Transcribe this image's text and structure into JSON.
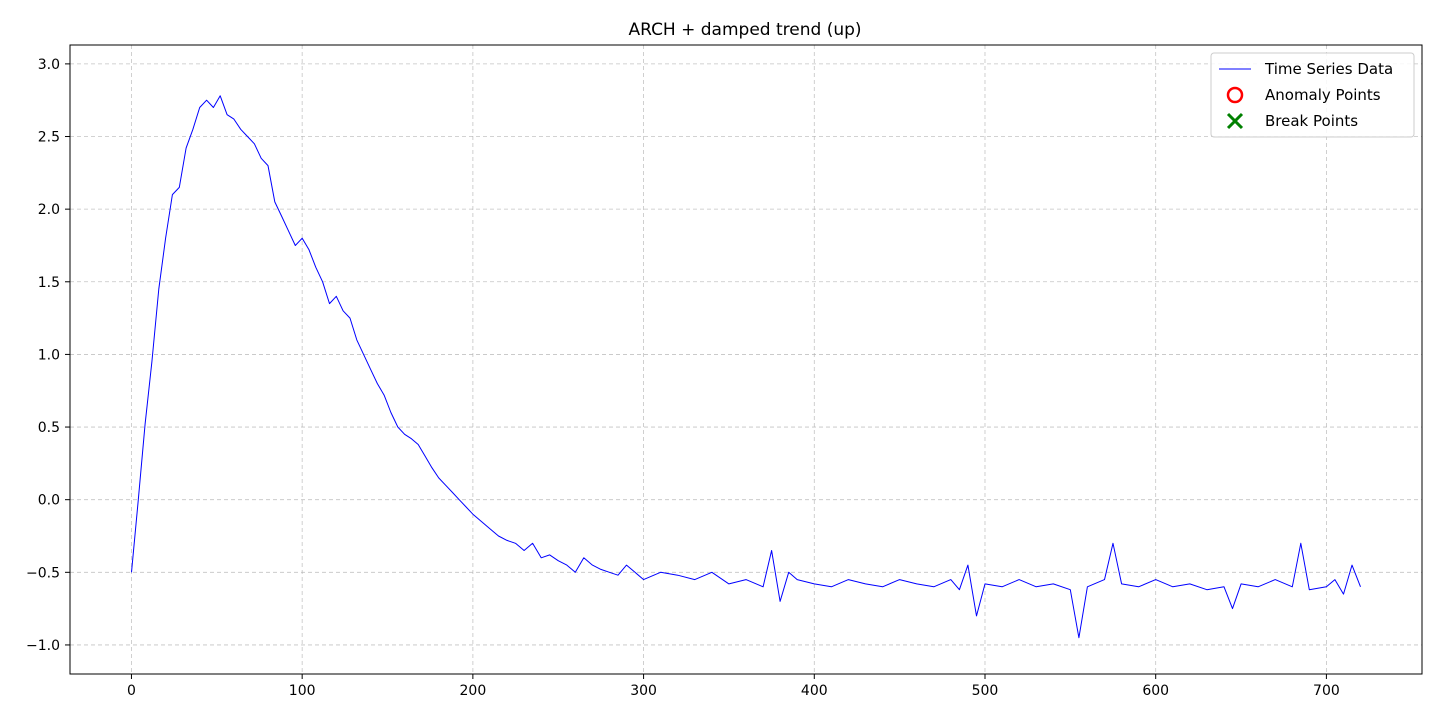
{
  "chart_data": {
    "type": "line",
    "title": "ARCH + damped trend (up)",
    "xlabel": "",
    "ylabel": "",
    "xlim": [
      -36,
      756
    ],
    "ylim": [
      -1.2,
      3.13
    ],
    "x_ticks": [
      0,
      100,
      200,
      300,
      400,
      500,
      600,
      700
    ],
    "y_ticks": [
      -1.0,
      -0.5,
      0.0,
      0.5,
      1.0,
      1.5,
      2.0,
      2.5,
      3.0
    ],
    "grid": true,
    "legend_position": "top-right",
    "colors": {
      "series": "#0000ff",
      "anomaly": "#ff0000",
      "break": "#008000"
    },
    "legend": [
      {
        "label": "Time Series Data",
        "marker": "line"
      },
      {
        "label": "Anomaly Points",
        "marker": "circle"
      },
      {
        "label": "Break Points",
        "marker": "x"
      }
    ],
    "series": [
      {
        "name": "Time Series Data",
        "x": [
          0,
          4,
          8,
          12,
          16,
          20,
          24,
          28,
          32,
          36,
          40,
          44,
          48,
          52,
          56,
          60,
          64,
          68,
          72,
          76,
          80,
          84,
          88,
          92,
          96,
          100,
          104,
          108,
          112,
          116,
          120,
          124,
          128,
          132,
          136,
          140,
          144,
          148,
          152,
          156,
          160,
          164,
          168,
          172,
          176,
          180,
          184,
          188,
          192,
          196,
          200,
          205,
          210,
          215,
          220,
          225,
          230,
          235,
          240,
          245,
          250,
          255,
          260,
          265,
          270,
          275,
          280,
          285,
          290,
          295,
          300,
          310,
          320,
          330,
          340,
          350,
          360,
          370,
          375,
          380,
          385,
          390,
          400,
          410,
          420,
          430,
          440,
          450,
          460,
          470,
          480,
          485,
          490,
          495,
          500,
          510,
          520,
          530,
          540,
          550,
          555,
          560,
          570,
          575,
          580,
          590,
          600,
          610,
          620,
          630,
          640,
          645,
          650,
          660,
          670,
          680,
          685,
          690,
          700,
          705,
          710,
          715,
          720
        ],
        "y": [
          -0.5,
          0.0,
          0.52,
          0.95,
          1.45,
          1.8,
          2.1,
          2.15,
          2.42,
          2.55,
          2.7,
          2.75,
          2.7,
          2.78,
          2.65,
          2.62,
          2.55,
          2.5,
          2.45,
          2.35,
          2.3,
          2.05,
          1.95,
          1.85,
          1.75,
          1.8,
          1.72,
          1.6,
          1.5,
          1.35,
          1.4,
          1.3,
          1.25,
          1.1,
          1.0,
          0.9,
          0.8,
          0.72,
          0.6,
          0.5,
          0.45,
          0.42,
          0.38,
          0.3,
          0.22,
          0.15,
          0.1,
          0.05,
          0.0,
          -0.05,
          -0.1,
          -0.15,
          -0.2,
          -0.25,
          -0.28,
          -0.3,
          -0.35,
          -0.3,
          -0.4,
          -0.38,
          -0.42,
          -0.45,
          -0.5,
          -0.4,
          -0.45,
          -0.48,
          -0.5,
          -0.52,
          -0.45,
          -0.5,
          -0.55,
          -0.5,
          -0.52,
          -0.55,
          -0.5,
          -0.58,
          -0.55,
          -0.6,
          -0.35,
          -0.7,
          -0.5,
          -0.55,
          -0.58,
          -0.6,
          -0.55,
          -0.58,
          -0.6,
          -0.55,
          -0.58,
          -0.6,
          -0.55,
          -0.62,
          -0.45,
          -0.8,
          -0.58,
          -0.6,
          -0.55,
          -0.6,
          -0.58,
          -0.62,
          -0.95,
          -0.6,
          -0.55,
          -0.3,
          -0.58,
          -0.6,
          -0.55,
          -0.6,
          -0.58,
          -0.62,
          -0.6,
          -0.75,
          -0.58,
          -0.6,
          -0.55,
          -0.6,
          -0.3,
          -0.62,
          -0.6,
          -0.55,
          -0.65,
          -0.45,
          -0.6
        ]
      }
    ]
  }
}
